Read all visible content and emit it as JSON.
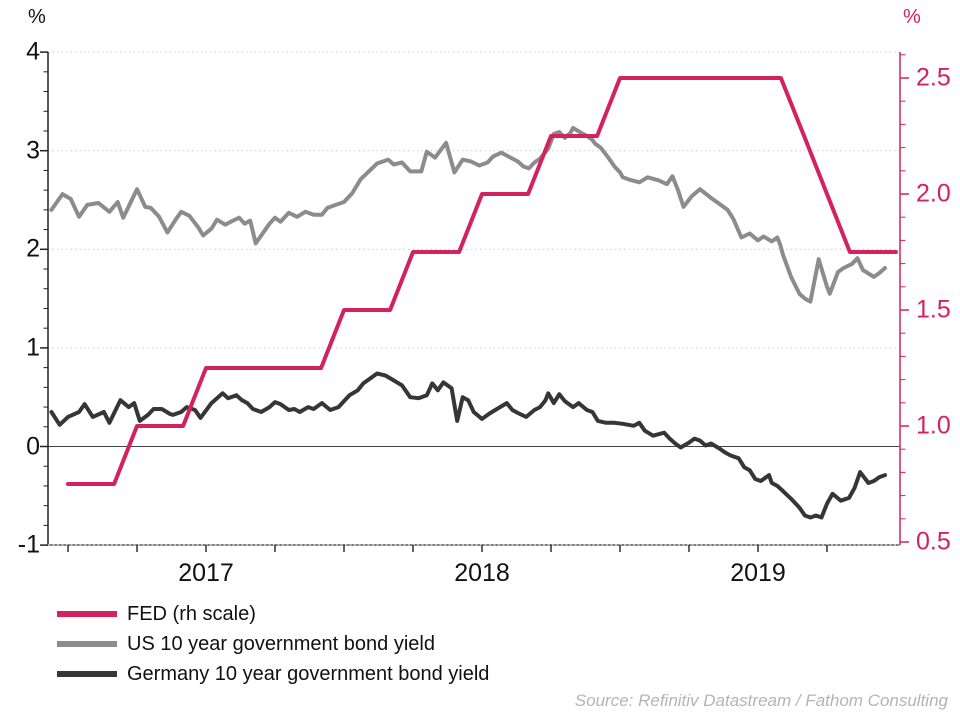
{
  "header": {
    "left_unit": "%",
    "right_unit": "%"
  },
  "chart_data": {
    "type": "line",
    "title": "",
    "x_axis": {
      "year_labels": [
        "2017",
        "2018",
        "2019"
      ],
      "year_label_positions": [
        2017.5,
        2018.5,
        2019.5
      ],
      "quarter_tick_positions": [
        2017.0,
        2017.25,
        2017.5,
        2017.75,
        2018.0,
        2018.25,
        2018.5,
        2018.75,
        2019.0,
        2019.25,
        2019.5,
        2019.75
      ],
      "range": [
        2016.93,
        2020.02
      ]
    },
    "left_axis": {
      "unit": "%",
      "tick_labels": [
        "4",
        "3",
        "2",
        "1",
        "0",
        "-1"
      ],
      "tick_values": [
        4,
        3,
        2,
        1,
        0,
        -1
      ],
      "minor_tick_step": 0.2,
      "gridline_values": [
        4,
        3,
        2,
        1
      ],
      "zero_line_value": 0,
      "range": [
        -1,
        4
      ]
    },
    "right_axis": {
      "unit": "%",
      "tick_labels": [
        "2.5",
        "2.0",
        "1.5",
        "1.0",
        "0.5"
      ],
      "tick_values": [
        2.5,
        2.0,
        1.5,
        1.0,
        0.5
      ],
      "minor_tick_step": 0.1,
      "range": [
        0.5,
        2.6
      ],
      "color": "#d2235c"
    },
    "series": [
      {
        "name": "US 10 year government bond yield",
        "axis": "left",
        "color": "#8c8c8c",
        "points": [
          [
            2016.94,
            2.4
          ],
          [
            2016.98,
            2.56
          ],
          [
            2017.01,
            2.51
          ],
          [
            2017.04,
            2.33
          ],
          [
            2017.07,
            2.45
          ],
          [
            2017.11,
            2.47
          ],
          [
            2017.15,
            2.38
          ],
          [
            2017.18,
            2.48
          ],
          [
            2017.2,
            2.32
          ],
          [
            2017.25,
            2.61
          ],
          [
            2017.28,
            2.43
          ],
          [
            2017.3,
            2.42
          ],
          [
            2017.33,
            2.33
          ],
          [
            2017.36,
            2.17
          ],
          [
            2017.39,
            2.3
          ],
          [
            2017.41,
            2.38
          ],
          [
            2017.44,
            2.34
          ],
          [
            2017.47,
            2.23
          ],
          [
            2017.49,
            2.14
          ],
          [
            2017.52,
            2.21
          ],
          [
            2017.54,
            2.3
          ],
          [
            2017.57,
            2.25
          ],
          [
            2017.59,
            2.28
          ],
          [
            2017.62,
            2.32
          ],
          [
            2017.64,
            2.26
          ],
          [
            2017.66,
            2.29
          ],
          [
            2017.68,
            2.06
          ],
          [
            2017.73,
            2.26
          ],
          [
            2017.75,
            2.32
          ],
          [
            2017.77,
            2.28
          ],
          [
            2017.8,
            2.37
          ],
          [
            2017.83,
            2.33
          ],
          [
            2017.86,
            2.38
          ],
          [
            2017.89,
            2.35
          ],
          [
            2017.92,
            2.35
          ],
          [
            2017.94,
            2.42
          ],
          [
            2017.97,
            2.45
          ],
          [
            2018.0,
            2.48
          ],
          [
            2018.03,
            2.57
          ],
          [
            2018.06,
            2.71
          ],
          [
            2018.09,
            2.79
          ],
          [
            2018.12,
            2.87
          ],
          [
            2018.16,
            2.91
          ],
          [
            2018.18,
            2.86
          ],
          [
            2018.21,
            2.88
          ],
          [
            2018.24,
            2.79
          ],
          [
            2018.28,
            2.79
          ],
          [
            2018.3,
            2.99
          ],
          [
            2018.33,
            2.93
          ],
          [
            2018.37,
            3.08
          ],
          [
            2018.4,
            2.78
          ],
          [
            2018.43,
            2.91
          ],
          [
            2018.46,
            2.89
          ],
          [
            2018.49,
            2.85
          ],
          [
            2018.52,
            2.88
          ],
          [
            2018.54,
            2.94
          ],
          [
            2018.57,
            2.98
          ],
          [
            2018.59,
            2.95
          ],
          [
            2018.61,
            2.92
          ],
          [
            2018.63,
            2.89
          ],
          [
            2018.65,
            2.84
          ],
          [
            2018.67,
            2.82
          ],
          [
            2018.69,
            2.88
          ],
          [
            2018.71,
            2.92
          ],
          [
            2018.74,
            3.02
          ],
          [
            2018.76,
            3.17
          ],
          [
            2018.78,
            3.19
          ],
          [
            2018.8,
            3.13
          ],
          [
            2018.82,
            3.18
          ],
          [
            2018.83,
            3.23
          ],
          [
            2018.86,
            3.18
          ],
          [
            2018.88,
            3.15
          ],
          [
            2018.9,
            3.11
          ],
          [
            2018.91,
            3.07
          ],
          [
            2018.93,
            3.03
          ],
          [
            2018.96,
            2.92
          ],
          [
            2018.98,
            2.84
          ],
          [
            2019.0,
            2.78
          ],
          [
            2019.01,
            2.73
          ],
          [
            2019.03,
            2.71
          ],
          [
            2019.07,
            2.68
          ],
          [
            2019.1,
            2.73
          ],
          [
            2019.14,
            2.7
          ],
          [
            2019.17,
            2.66
          ],
          [
            2019.19,
            2.74
          ],
          [
            2019.21,
            2.6
          ],
          [
            2019.23,
            2.43
          ],
          [
            2019.26,
            2.54
          ],
          [
            2019.29,
            2.61
          ],
          [
            2019.33,
            2.52
          ],
          [
            2019.36,
            2.46
          ],
          [
            2019.39,
            2.4
          ],
          [
            2019.41,
            2.31
          ],
          [
            2019.44,
            2.12
          ],
          [
            2019.47,
            2.16
          ],
          [
            2019.5,
            2.09
          ],
          [
            2019.52,
            2.13
          ],
          [
            2019.55,
            2.08
          ],
          [
            2019.57,
            2.12
          ],
          [
            2019.58,
            2.05
          ],
          [
            2019.59,
            1.95
          ],
          [
            2019.62,
            1.72
          ],
          [
            2019.65,
            1.55
          ],
          [
            2019.67,
            1.5
          ],
          [
            2019.69,
            1.47
          ],
          [
            2019.72,
            1.9
          ],
          [
            2019.75,
            1.62
          ],
          [
            2019.76,
            1.55
          ],
          [
            2019.79,
            1.77
          ],
          [
            2019.81,
            1.81
          ],
          [
            2019.84,
            1.85
          ],
          [
            2019.86,
            1.91
          ],
          [
            2019.88,
            1.79
          ],
          [
            2019.92,
            1.72
          ],
          [
            2019.94,
            1.76
          ],
          [
            2019.96,
            1.81
          ]
        ]
      },
      {
        "name": "Germany 10 year government bond yield",
        "axis": "left",
        "color": "#363636",
        "points": [
          [
            2016.94,
            0.35
          ],
          [
            2016.97,
            0.22
          ],
          [
            2017.0,
            0.3
          ],
          [
            2017.04,
            0.35
          ],
          [
            2017.06,
            0.43
          ],
          [
            2017.09,
            0.3
          ],
          [
            2017.13,
            0.35
          ],
          [
            2017.15,
            0.24
          ],
          [
            2017.19,
            0.47
          ],
          [
            2017.22,
            0.4
          ],
          [
            2017.24,
            0.44
          ],
          [
            2017.26,
            0.26
          ],
          [
            2017.29,
            0.32
          ],
          [
            2017.31,
            0.38
          ],
          [
            2017.34,
            0.38
          ],
          [
            2017.37,
            0.33
          ],
          [
            2017.38,
            0.32
          ],
          [
            2017.41,
            0.35
          ],
          [
            2017.43,
            0.4
          ],
          [
            2017.46,
            0.37
          ],
          [
            2017.48,
            0.29
          ],
          [
            2017.52,
            0.44
          ],
          [
            2017.54,
            0.49
          ],
          [
            2017.56,
            0.54
          ],
          [
            2017.58,
            0.49
          ],
          [
            2017.61,
            0.52
          ],
          [
            2017.63,
            0.47
          ],
          [
            2017.65,
            0.44
          ],
          [
            2017.67,
            0.38
          ],
          [
            2017.7,
            0.35
          ],
          [
            2017.73,
            0.4
          ],
          [
            2017.75,
            0.45
          ],
          [
            2017.77,
            0.43
          ],
          [
            2017.8,
            0.37
          ],
          [
            2017.82,
            0.38
          ],
          [
            2017.84,
            0.35
          ],
          [
            2017.87,
            0.4
          ],
          [
            2017.89,
            0.38
          ],
          [
            2017.92,
            0.44
          ],
          [
            2017.95,
            0.37
          ],
          [
            2017.98,
            0.4
          ],
          [
            2018.0,
            0.46
          ],
          [
            2018.02,
            0.52
          ],
          [
            2018.05,
            0.57
          ],
          [
            2018.07,
            0.64
          ],
          [
            2018.12,
            0.74
          ],
          [
            2018.15,
            0.72
          ],
          [
            2018.18,
            0.67
          ],
          [
            2018.21,
            0.62
          ],
          [
            2018.24,
            0.5
          ],
          [
            2018.27,
            0.49
          ],
          [
            2018.3,
            0.52
          ],
          [
            2018.32,
            0.64
          ],
          [
            2018.34,
            0.57
          ],
          [
            2018.36,
            0.65
          ],
          [
            2018.39,
            0.59
          ],
          [
            2018.41,
            0.26
          ],
          [
            2018.43,
            0.5
          ],
          [
            2018.45,
            0.47
          ],
          [
            2018.47,
            0.35
          ],
          [
            2018.5,
            0.28
          ],
          [
            2018.53,
            0.34
          ],
          [
            2018.56,
            0.39
          ],
          [
            2018.59,
            0.44
          ],
          [
            2018.61,
            0.37
          ],
          [
            2018.63,
            0.34
          ],
          [
            2018.66,
            0.3
          ],
          [
            2018.69,
            0.37
          ],
          [
            2018.71,
            0.4
          ],
          [
            2018.73,
            0.47
          ],
          [
            2018.74,
            0.54
          ],
          [
            2018.76,
            0.44
          ],
          [
            2018.78,
            0.53
          ],
          [
            2018.8,
            0.46
          ],
          [
            2018.83,
            0.4
          ],
          [
            2018.85,
            0.44
          ],
          [
            2018.88,
            0.37
          ],
          [
            2018.9,
            0.35
          ],
          [
            2018.92,
            0.26
          ],
          [
            2018.95,
            0.24
          ],
          [
            2018.98,
            0.24
          ],
          [
            2019.01,
            0.23
          ],
          [
            2019.05,
            0.21
          ],
          [
            2019.07,
            0.24
          ],
          [
            2019.09,
            0.16
          ],
          [
            2019.12,
            0.11
          ],
          [
            2019.16,
            0.14
          ],
          [
            2019.18,
            0.08
          ],
          [
            2019.2,
            0.03
          ],
          [
            2019.22,
            -0.01
          ],
          [
            2019.25,
            0.04
          ],
          [
            2019.27,
            0.08
          ],
          [
            2019.29,
            0.06
          ],
          [
            2019.31,
            0.01
          ],
          [
            2019.33,
            0.03
          ],
          [
            2019.36,
            -0.02
          ],
          [
            2019.38,
            -0.06
          ],
          [
            2019.4,
            -0.09
          ],
          [
            2019.43,
            -0.12
          ],
          [
            2019.45,
            -0.21
          ],
          [
            2019.47,
            -0.24
          ],
          [
            2019.49,
            -0.33
          ],
          [
            2019.51,
            -0.35
          ],
          [
            2019.54,
            -0.29
          ],
          [
            2019.55,
            -0.37
          ],
          [
            2019.57,
            -0.4
          ],
          [
            2019.59,
            -0.45
          ],
          [
            2019.62,
            -0.53
          ],
          [
            2019.65,
            -0.62
          ],
          [
            2019.67,
            -0.7
          ],
          [
            2019.69,
            -0.72
          ],
          [
            2019.71,
            -0.7
          ],
          [
            2019.73,
            -0.72
          ],
          [
            2019.75,
            -0.58
          ],
          [
            2019.77,
            -0.48
          ],
          [
            2019.8,
            -0.55
          ],
          [
            2019.83,
            -0.52
          ],
          [
            2019.85,
            -0.42
          ],
          [
            2019.87,
            -0.26
          ],
          [
            2019.9,
            -0.37
          ],
          [
            2019.92,
            -0.35
          ],
          [
            2019.94,
            -0.31
          ],
          [
            2019.96,
            -0.29
          ]
        ]
      },
      {
        "name": "FED (rh scale)",
        "axis": "right",
        "color": "#d2235c",
        "points": [
          [
            2017.0,
            0.75
          ],
          [
            2017.083,
            0.75
          ],
          [
            2017.167,
            0.75
          ],
          [
            2017.25,
            1.0
          ],
          [
            2017.333,
            1.0
          ],
          [
            2017.417,
            1.0
          ],
          [
            2017.5,
            1.25
          ],
          [
            2017.583,
            1.25
          ],
          [
            2017.667,
            1.25
          ],
          [
            2017.75,
            1.25
          ],
          [
            2017.833,
            1.25
          ],
          [
            2017.917,
            1.25
          ],
          [
            2018.0,
            1.5
          ],
          [
            2018.083,
            1.5
          ],
          [
            2018.167,
            1.5
          ],
          [
            2018.25,
            1.75
          ],
          [
            2018.333,
            1.75
          ],
          [
            2018.417,
            1.75
          ],
          [
            2018.5,
            2.0
          ],
          [
            2018.583,
            2.0
          ],
          [
            2018.667,
            2.0
          ],
          [
            2018.75,
            2.25
          ],
          [
            2018.833,
            2.25
          ],
          [
            2018.917,
            2.25
          ],
          [
            2019.0,
            2.5
          ],
          [
            2019.083,
            2.5
          ],
          [
            2019.167,
            2.5
          ],
          [
            2019.25,
            2.5
          ],
          [
            2019.333,
            2.5
          ],
          [
            2019.417,
            2.5
          ],
          [
            2019.5,
            2.5
          ],
          [
            2019.583,
            2.5
          ],
          [
            2019.667,
            2.25
          ],
          [
            2019.75,
            2.0
          ],
          [
            2019.833,
            1.75
          ],
          [
            2019.917,
            1.75
          ],
          [
            2020.0,
            1.75
          ]
        ]
      }
    ]
  },
  "legend": {
    "items": [
      {
        "label": "FED (rh scale)",
        "color": "#d2235c"
      },
      {
        "label": "US 10 year government bond yield",
        "color": "#8c8c8c"
      },
      {
        "label": "Germany 10 year government bond yield",
        "color": "#363636"
      }
    ]
  },
  "source": {
    "text": "Source: Refinitiv Datastream / Fathom Consulting"
  }
}
